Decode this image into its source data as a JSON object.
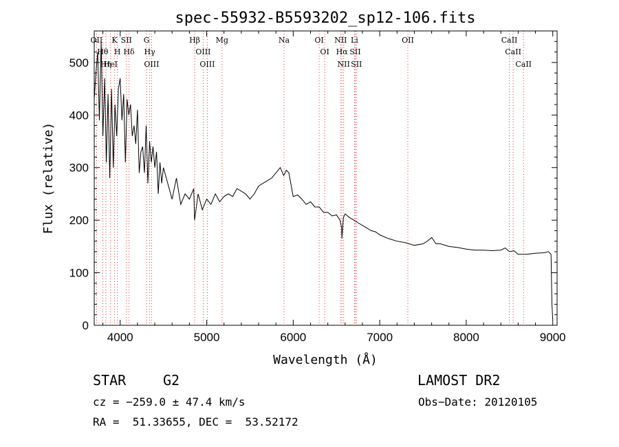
{
  "chart_data": {
    "type": "line",
    "title": "spec-55932-B5593202_sp12-106.fits",
    "xlabel": "Wavelength (Å)",
    "ylabel": "Flux (relative)",
    "xlim": [
      3700,
      9050
    ],
    "ylim": [
      0,
      560
    ],
    "x_ticks": [
      4000,
      5000,
      6000,
      7000,
      8000,
      9000
    ],
    "x_tick_labels": [
      "4000",
      "5000",
      "6000",
      "7000",
      "8000",
      "9000"
    ],
    "y_ticks": [
      0,
      100,
      200,
      300,
      400,
      500
    ],
    "y_tick_labels": [
      "0",
      "100",
      "200",
      "300",
      "400",
      "500"
    ],
    "grid": false,
    "series": [
      {
        "x": [
          3700,
          3720,
          3740,
          3760,
          3780,
          3800,
          3820,
          3840,
          3860,
          3880,
          3900,
          3920,
          3940,
          3960,
          3980,
          4000,
          4020,
          4040,
          4060,
          4080,
          4100,
          4120,
          4140,
          4160,
          4180,
          4200,
          4220,
          4240,
          4260,
          4280,
          4300,
          4320,
          4340,
          4360,
          4380,
          4400,
          4420,
          4440,
          4460,
          4480,
          4500,
          4550,
          4600,
          4650,
          4700,
          4750,
          4800,
          4850,
          4860,
          4900,
          4950,
          5000,
          5050,
          5100,
          5150,
          5200,
          5250,
          5300,
          5350,
          5400,
          5450,
          5500,
          5550,
          5600,
          5650,
          5700,
          5750,
          5800,
          5850,
          5890,
          5920,
          5950,
          6000,
          6050,
          6100,
          6150,
          6200,
          6250,
          6300,
          6350,
          6400,
          6450,
          6500,
          6540,
          6560,
          6563,
          6580,
          6600,
          6650,
          6700,
          6750,
          6800,
          6850,
          6900,
          6950,
          7000,
          7100,
          7200,
          7300,
          7400,
          7500,
          7550,
          7600,
          7650,
          7700,
          7800,
          7900,
          8000,
          8100,
          8200,
          8300,
          8400,
          8450,
          8500,
          8550,
          8600,
          8700,
          8800,
          8900,
          8950,
          8980,
          8990,
          9000
        ],
        "y": [
          430,
          480,
          520,
          390,
          540,
          360,
          470,
          310,
          440,
          280,
          450,
          300,
          420,
          360,
          450,
          470,
          390,
          440,
          310,
          430,
          400,
          420,
          360,
          380,
          345,
          410,
          290,
          330,
          340,
          290,
          380,
          270,
          350,
          310,
          340,
          300,
          330,
          250,
          310,
          270,
          300,
          270,
          240,
          280,
          230,
          250,
          240,
          260,
          200,
          250,
          220,
          240,
          230,
          250,
          235,
          245,
          250,
          245,
          260,
          255,
          250,
          240,
          250,
          265,
          270,
          275,
          280,
          290,
          300,
          285,
          295,
          290,
          245,
          248,
          240,
          230,
          235,
          225,
          225,
          215,
          215,
          208,
          210,
          200,
          185,
          165,
          205,
          212,
          205,
          200,
          195,
          190,
          185,
          180,
          178,
          172,
          165,
          160,
          157,
          152,
          155,
          160,
          167,
          155,
          155,
          150,
          148,
          145,
          143,
          143,
          142,
          143,
          147,
          140,
          142,
          135,
          135,
          137,
          138,
          140,
          135,
          40,
          10
        ]
      }
    ],
    "lines": [
      {
        "label": "OII",
        "x": 3727
      },
      {
        "label": "Hθ",
        "x": 3798
      },
      {
        "label": "Hη",
        "x": 3835
      },
      {
        "label": "HeI",
        "x": 3889
      },
      {
        "label": "K",
        "x": 3934
      },
      {
        "label": "H",
        "x": 3968
      },
      {
        "label": "SII",
        "x": 4072
      },
      {
        "label": "Hδ",
        "x": 4102
      },
      {
        "label": "G",
        "x": 4305
      },
      {
        "label": "Hγ",
        "x": 4341
      },
      {
        "label": "OIII",
        "x": 4363
      },
      {
        "label": "Hβ",
        "x": 4861
      },
      {
        "label": "OIII",
        "x": 4959
      },
      {
        "label": "OIII",
        "x": 5007
      },
      {
        "label": "Mg",
        "x": 5177
      },
      {
        "label": "Na",
        "x": 5894
      },
      {
        "label": "OI",
        "x": 6300
      },
      {
        "label": "OI",
        "x": 6364
      },
      {
        "label": "NII",
        "x": 6548
      },
      {
        "label": "Hα",
        "x": 6563
      },
      {
        "label": "NII",
        "x": 6583
      },
      {
        "label": "Li",
        "x": 6708
      },
      {
        "label": "SII",
        "x": 6717
      },
      {
        "label": "SII",
        "x": 6731
      },
      {
        "label": "OII",
        "x": 7325
      },
      {
        "label": "CaII",
        "x": 8498
      },
      {
        "label": "CaII",
        "x": 8542
      },
      {
        "label": "CaII",
        "x": 8662
      }
    ]
  },
  "footer": {
    "object_type": "STAR",
    "subclass": "G2",
    "survey": "LAMOST DR2",
    "cz": "cz = −259.0 ± 47.4 km/s",
    "obs_date": "Obs−Date: 20120105",
    "coords": "RA =  51.33655, DEC =  53.52172"
  }
}
